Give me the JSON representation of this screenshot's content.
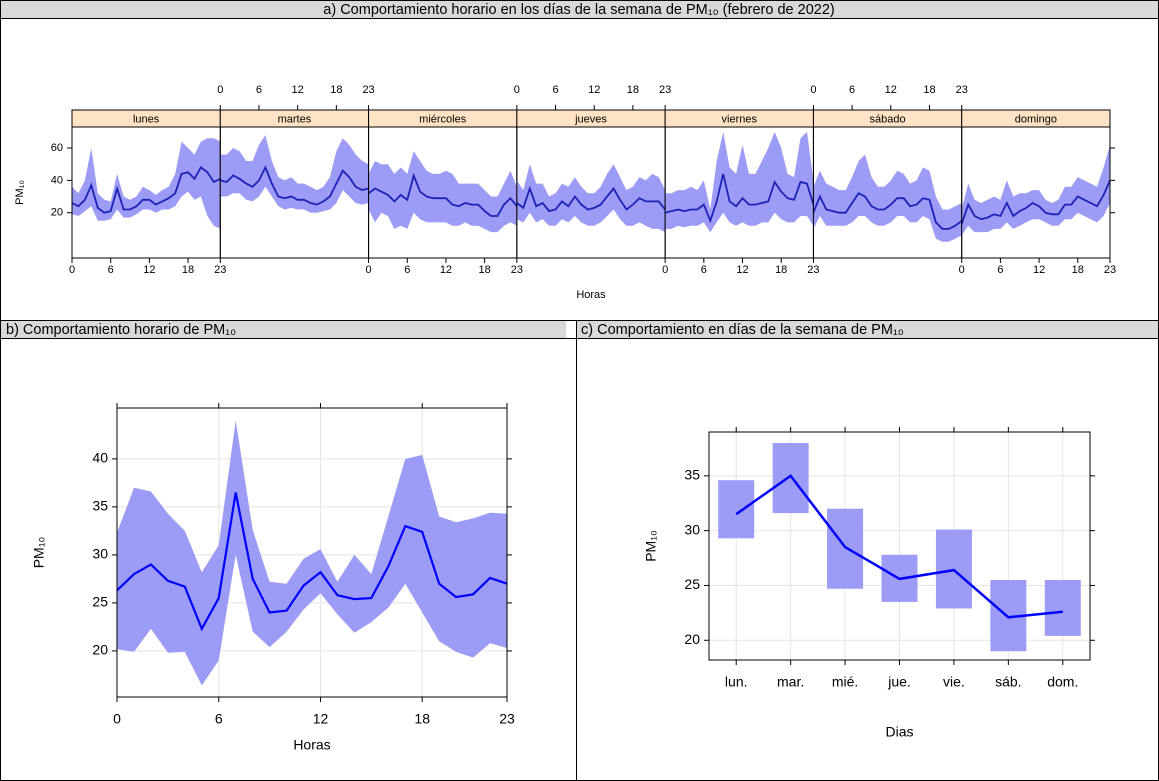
{
  "chart_data": [
    {
      "type": "panel-band",
      "title": "a)      Comportamiento horario en los días de la semana de PM₁₀ (febrero de 2022)",
      "xlabel": "Horas",
      "ylabel": "PM₁₀",
      "x": [
        0,
        1,
        2,
        3,
        4,
        5,
        6,
        7,
        8,
        9,
        10,
        11,
        12,
        13,
        14,
        15,
        16,
        17,
        18,
        19,
        20,
        21,
        22,
        23
      ],
      "xlim": [
        0,
        23
      ],
      "xticks": [
        0,
        6,
        12,
        18,
        23
      ],
      "ylim": [
        -8,
        73
      ],
      "yticks": [
        20,
        40,
        60
      ],
      "color": "#2020b8",
      "band_color": "#9c9cf6",
      "strip_color": "#ffe3c4",
      "panels": [
        {
          "name": "lunes",
          "values": [
            26,
            24,
            28,
            37,
            23,
            20,
            21,
            35,
            22,
            22,
            24,
            28,
            28,
            25,
            27,
            29,
            32,
            44,
            45,
            41,
            48,
            45,
            39,
            41
          ],
          "lower": [
            19,
            18,
            21,
            24,
            15,
            15,
            16,
            22,
            17,
            17,
            19,
            22,
            22,
            20,
            22,
            22,
            24,
            30,
            33,
            28,
            30,
            18,
            12,
            10
          ],
          "upper": [
            36,
            32,
            40,
            60,
            32,
            28,
            27,
            44,
            30,
            28,
            30,
            36,
            34,
            31,
            34,
            36,
            44,
            64,
            60,
            56,
            64,
            66,
            66,
            64
          ]
        },
        {
          "name": "martes",
          "values": [
            40,
            39,
            43,
            41,
            38,
            36,
            40,
            48,
            38,
            30,
            29,
            30,
            28,
            28,
            26,
            25,
            27,
            30,
            38,
            46,
            42,
            36,
            34,
            35
          ],
          "lower": [
            30,
            30,
            32,
            32,
            28,
            27,
            30,
            36,
            30,
            24,
            22,
            23,
            22,
            22,
            20,
            20,
            21,
            22,
            26,
            34,
            30,
            26,
            25,
            26
          ],
          "upper": [
            56,
            56,
            60,
            58,
            52,
            52,
            62,
            68,
            52,
            42,
            40,
            42,
            38,
            38,
            36,
            34,
            36,
            42,
            58,
            66,
            62,
            56,
            52,
            50
          ]
        },
        {
          "name": "miércoles",
          "values": [
            32,
            35,
            33,
            31,
            27,
            31,
            28,
            43,
            33,
            30,
            29,
            29,
            29,
            25,
            24,
            26,
            25,
            25,
            21,
            18,
            18,
            25,
            29,
            24
          ],
          "lower": [
            22,
            14,
            20,
            18,
            10,
            12,
            10,
            20,
            16,
            14,
            14,
            14,
            14,
            12,
            12,
            14,
            12,
            12,
            10,
            8,
            8,
            12,
            14,
            12
          ],
          "upper": [
            44,
            52,
            50,
            50,
            44,
            48,
            44,
            58,
            52,
            46,
            44,
            44,
            46,
            44,
            38,
            38,
            38,
            38,
            34,
            30,
            30,
            38,
            46,
            36
          ]
        },
        {
          "name": "jueves",
          "values": [
            26,
            23,
            35,
            24,
            26,
            21,
            22,
            27,
            24,
            30,
            25,
            22,
            23,
            25,
            30,
            35,
            28,
            22,
            25,
            29,
            27,
            27,
            27,
            22
          ],
          "lower": [
            16,
            14,
            20,
            14,
            16,
            12,
            12,
            16,
            14,
            18,
            14,
            12,
            12,
            14,
            18,
            22,
            16,
            12,
            12,
            14,
            12,
            10,
            10,
            8
          ],
          "upper": [
            40,
            34,
            50,
            38,
            38,
            30,
            32,
            38,
            36,
            42,
            36,
            32,
            32,
            36,
            44,
            50,
            42,
            34,
            36,
            42,
            40,
            44,
            42,
            34
          ]
        },
        {
          "name": "viernes",
          "values": [
            20,
            21,
            22,
            21,
            22,
            22,
            25,
            15,
            27,
            44,
            27,
            24,
            29,
            25,
            25,
            26,
            27,
            39,
            33,
            29,
            28,
            39,
            38,
            25
          ],
          "lower": [
            10,
            10,
            12,
            11,
            12,
            12,
            14,
            8,
            14,
            20,
            14,
            12,
            14,
            12,
            12,
            14,
            14,
            20,
            16,
            14,
            14,
            18,
            18,
            12
          ],
          "upper": [
            32,
            32,
            34,
            34,
            36,
            34,
            40,
            22,
            52,
            70,
            48,
            44,
            62,
            44,
            44,
            52,
            60,
            70,
            60,
            44,
            42,
            66,
            70,
            40
          ]
        },
        {
          "name": "sábado",
          "values": [
            20,
            30,
            22,
            21,
            20,
            20,
            26,
            32,
            30,
            24,
            22,
            22,
            25,
            29,
            29,
            24,
            25,
            29,
            28,
            14,
            10,
            10,
            12,
            15
          ],
          "lower": [
            10,
            18,
            12,
            12,
            12,
            12,
            14,
            18,
            18,
            14,
            12,
            12,
            14,
            18,
            18,
            14,
            14,
            18,
            16,
            4,
            2,
            2,
            4,
            6
          ],
          "upper": [
            36,
            46,
            38,
            36,
            34,
            34,
            42,
            52,
            56,
            42,
            36,
            36,
            40,
            46,
            44,
            38,
            40,
            48,
            46,
            30,
            22,
            22,
            24,
            26
          ]
        },
        {
          "name": "domingo",
          "values": [
            13,
            25,
            18,
            16,
            17,
            19,
            18,
            26,
            18,
            21,
            23,
            26,
            24,
            20,
            19,
            19,
            25,
            25,
            30,
            28,
            26,
            24,
            31,
            40
          ],
          "lower": [
            6,
            12,
            8,
            8,
            8,
            10,
            10,
            14,
            10,
            12,
            14,
            16,
            16,
            14,
            12,
            12,
            16,
            16,
            20,
            18,
            16,
            14,
            18,
            26
          ],
          "upper": [
            22,
            38,
            28,
            26,
            28,
            30,
            28,
            40,
            30,
            32,
            32,
            34,
            34,
            28,
            26,
            28,
            36,
            36,
            42,
            40,
            38,
            36,
            48,
            62
          ]
        }
      ]
    },
    {
      "type": "band-line",
      "title": "b) Comportamiento horario de PM₁₀",
      "xlabel": "Horas",
      "ylabel": "PM₁₀",
      "x": [
        0,
        1,
        2,
        3,
        4,
        5,
        6,
        7,
        8,
        9,
        10,
        11,
        12,
        13,
        14,
        15,
        16,
        17,
        18,
        19,
        20,
        21,
        22,
        23
      ],
      "xlim": [
        0,
        23
      ],
      "xticks": [
        0,
        6,
        12,
        18,
        23
      ],
      "ylim": [
        15.2,
        45.3
      ],
      "yticks": [
        20,
        25,
        30,
        35,
        40
      ],
      "grid": true,
      "color": "#0000ff",
      "band_color": "#9c9cf6",
      "values": [
        26.3,
        28,
        29,
        27.3,
        26.7,
        22.3,
        25.5,
        36.5,
        27.5,
        24,
        24.2,
        26.8,
        28.2,
        25.8,
        25.4,
        25.5,
        28.8,
        33,
        32.4,
        27,
        25.6,
        25.9,
        27.6,
        27
      ],
      "lower": [
        20.2,
        19.9,
        22.3,
        19.8,
        19.9,
        16.4,
        19,
        30,
        22,
        20.4,
        22,
        24.3,
        26,
        23.8,
        21.9,
        23,
        24.5,
        27,
        24,
        21,
        19.9,
        19.3,
        20.8,
        20.3
      ],
      "upper": [
        32.3,
        37,
        36.6,
        34.3,
        32.5,
        28.2,
        31,
        44,
        32.6,
        27.2,
        27,
        29.6,
        30.6,
        27.2,
        30,
        28,
        34,
        40,
        40.4,
        34,
        33.4,
        33.8,
        34.4,
        34.3
      ]
    },
    {
      "type": "box-line",
      "title": "c) Comportamiento en días de la semana de PM₁₀",
      "xlabel": "Dias",
      "ylabel": "PM₁₀",
      "categories": [
        "lun.",
        "mar.",
        "mié.",
        "jue.",
        "vie.",
        "sáb.",
        "dom."
      ],
      "ylim": [
        18.2,
        39
      ],
      "yticks": [
        20,
        25,
        30,
        35
      ],
      "grid": true,
      "color": "#0000ff",
      "band_color": "#9c9cf6",
      "values": [
        31.5,
        35,
        28.5,
        25.6,
        26.4,
        22.1,
        22.6
      ],
      "lower": [
        29.3,
        31.6,
        24.7,
        23.5,
        22.9,
        19,
        20.4
      ],
      "upper": [
        34.6,
        38,
        32,
        27.8,
        30.1,
        25.5,
        25.5
      ]
    }
  ]
}
